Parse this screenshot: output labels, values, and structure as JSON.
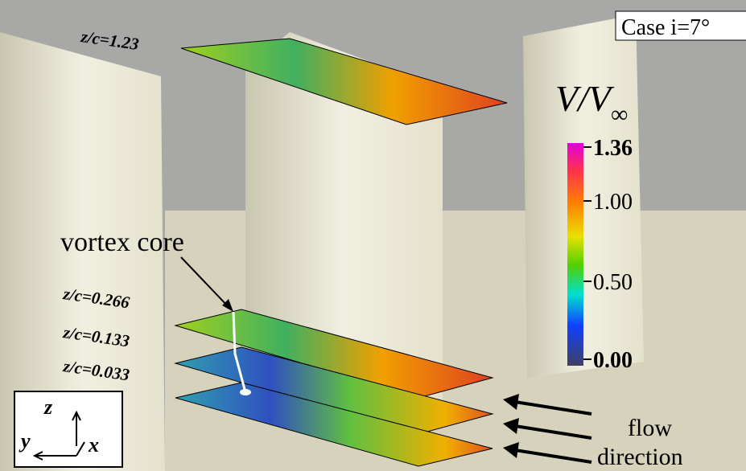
{
  "figure": {
    "case_label": "Case i=7°",
    "colorbar": {
      "title": "V/V",
      "title_sub": "∞",
      "ticks": [
        "1.36",
        "1.00",
        "0.50",
        "0.00"
      ]
    },
    "slices": [
      "z/c=1.23",
      "z/c=0.266",
      "z/c=0.133",
      "z/c=0.033"
    ],
    "vortex_label": "vortex core",
    "axes": {
      "z": "z",
      "y": "y",
      "x": "x"
    },
    "flow_label": [
      "flow",
      "direction"
    ]
  }
}
